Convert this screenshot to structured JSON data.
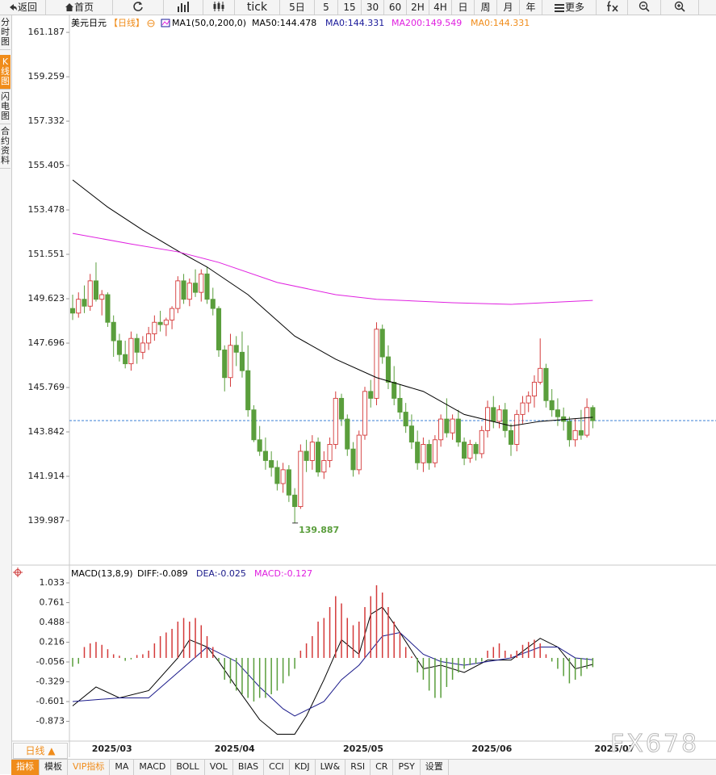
{
  "ui": {
    "toolbar": [
      "返回",
      "首页",
      "tick",
      "5日",
      "5",
      "15",
      "30",
      "60",
      "2H",
      "4H",
      "日",
      "周",
      "月",
      "年",
      "更多"
    ],
    "sidebar": [
      "分时图",
      "K线图",
      "闪电图",
      "合约资料"
    ],
    "period_button": "日线 ▲",
    "bottom_tabs": [
      "指标",
      "模板",
      "VIP指标",
      "MA",
      "MACD",
      "BOLL",
      "VOL",
      "BIAS",
      "CCI",
      "KDJ",
      "LW&",
      "RSI",
      "CR",
      "PSY",
      "设置"
    ],
    "watermark": "FX678"
  },
  "chart_data": [
    {
      "type": "candlestick",
      "title": "美元日元",
      "period": "【日线】",
      "indicator": "MA1(50,0,200,0)",
      "up_color": "#d43a3a",
      "down_color": "#5a9e3c",
      "categories": [
        null,
        null,
        null,
        "2025/03",
        null,
        null,
        null,
        null,
        null,
        null,
        null,
        null,
        null,
        null,
        null,
        null,
        null,
        null,
        null,
        null,
        null,
        null,
        null,
        null,
        "2025/04",
        null,
        null,
        null,
        null,
        null,
        null,
        null,
        null,
        null,
        null,
        null,
        null,
        null,
        null,
        null,
        null,
        null,
        null,
        null,
        null,
        null,
        "2025/05",
        null,
        null,
        null,
        null,
        null,
        null,
        null,
        null,
        null,
        null,
        null,
        null,
        null,
        null,
        null,
        null,
        null,
        null,
        null,
        null,
        null,
        "2025/06",
        null,
        null,
        null,
        null,
        null,
        null,
        null,
        null,
        null,
        null,
        null,
        null,
        null,
        null,
        null,
        null,
        null,
        null,
        null,
        null,
        "2025/07"
      ],
      "open": [
        149.2,
        149.0,
        149.6,
        149.3,
        150.4,
        149.6,
        149.8,
        148.6,
        147.8,
        147.2,
        146.8,
        147.9,
        147.3,
        147.7,
        148.1,
        148.6,
        148.5,
        148.7,
        149.2,
        150.4,
        149.6,
        150.3,
        149.9,
        150.7,
        149.6,
        149.2,
        147.4,
        146.2,
        147.6,
        147.3,
        146.5,
        144.8,
        143.5,
        143.0,
        142.6,
        142.3,
        141.6,
        142.2,
        141.1,
        140.6,
        143.0,
        142.6,
        143.4,
        142.1,
        142.6,
        143.3,
        145.3,
        144.4,
        143.1,
        142.2,
        143.7,
        145.6,
        145.3,
        148.3,
        147.1,
        146.0,
        145.3,
        144.7,
        144.1,
        143.4,
        142.5,
        143.3,
        142.5,
        143.5,
        144.4,
        143.8,
        144.4,
        143.4,
        142.7,
        143.3,
        142.9,
        143.9,
        144.9,
        144.3,
        144.8,
        143.9,
        143.3,
        144.6,
        145.1,
        145.4,
        146.0,
        146.6,
        145.2,
        144.8,
        144.5,
        144.3,
        143.5,
        143.9,
        143.7,
        144.9
      ],
      "high": [
        149.8,
        149.9,
        150.2,
        150.7,
        151.2,
        150.0,
        149.9,
        148.9,
        148.1,
        147.8,
        148.2,
        148.1,
        148.0,
        148.4,
        148.9,
        149.1,
        148.8,
        149.3,
        150.6,
        150.7,
        150.5,
        150.9,
        150.9,
        151.0,
        150.1,
        149.3,
        147.6,
        148.1,
        148.0,
        148.2,
        147.6,
        145.0,
        144.1,
        143.6,
        143.0,
        142.6,
        142.5,
        142.4,
        141.4,
        143.3,
        143.5,
        143.7,
        143.6,
        143.0,
        143.6,
        145.6,
        145.5,
        144.6,
        143.4,
        143.9,
        145.8,
        146.1,
        148.6,
        148.5,
        147.6,
        146.7,
        145.9,
        145.1,
        144.6,
        143.9,
        143.6,
        143.5,
        143.7,
        144.6,
        145.3,
        144.6,
        144.8,
        143.6,
        143.5,
        143.4,
        144.1,
        145.2,
        145.4,
        145.0,
        145.1,
        144.2,
        144.8,
        145.4,
        145.6,
        146.3,
        147.9,
        146.8,
        145.7,
        145.3,
        144.9,
        144.5,
        144.4,
        144.8,
        145.3,
        145.0
      ],
      "low": [
        148.7,
        148.8,
        149.0,
        149.1,
        149.5,
        148.9,
        148.4,
        147.1,
        146.9,
        146.6,
        146.5,
        146.8,
        147.0,
        147.4,
        147.8,
        148.2,
        148.0,
        148.3,
        149.0,
        149.4,
        149.3,
        149.7,
        149.5,
        149.4,
        148.9,
        147.1,
        145.6,
        145.8,
        146.7,
        146.2,
        144.5,
        143.4,
        142.8,
        142.2,
        141.9,
        141.3,
        141.2,
        140.8,
        139.887,
        140.5,
        142.1,
        142.2,
        141.9,
        141.8,
        142.3,
        143.1,
        144.1,
        142.8,
        141.9,
        142.0,
        143.5,
        144.9,
        145.0,
        146.8,
        145.7,
        145.0,
        144.4,
        143.8,
        143.1,
        142.2,
        142.1,
        142.2,
        142.3,
        143.2,
        143.6,
        143.5,
        143.2,
        142.4,
        142.5,
        142.6,
        142.7,
        143.6,
        144.0,
        144.0,
        143.6,
        142.8,
        143.0,
        144.2,
        144.7,
        144.9,
        145.9,
        144.9,
        144.5,
        144.1,
        143.9,
        143.2,
        143.2,
        143.5,
        143.6,
        144.0
      ],
      "close": [
        149.0,
        149.6,
        149.3,
        150.4,
        149.6,
        149.8,
        148.6,
        147.8,
        147.2,
        146.8,
        147.9,
        147.3,
        147.7,
        148.1,
        148.6,
        148.5,
        148.7,
        149.2,
        150.4,
        149.6,
        150.3,
        149.9,
        150.7,
        149.6,
        149.2,
        147.4,
        146.2,
        147.6,
        147.3,
        146.5,
        144.8,
        143.5,
        143.0,
        142.6,
        142.3,
        141.6,
        142.2,
        141.1,
        140.6,
        143.0,
        142.6,
        143.4,
        142.1,
        142.6,
        143.3,
        145.3,
        144.4,
        143.1,
        142.2,
        143.7,
        145.6,
        145.3,
        148.3,
        147.1,
        146.0,
        145.3,
        144.7,
        144.1,
        143.4,
        142.5,
        143.3,
        142.5,
        143.5,
        144.4,
        143.8,
        144.4,
        143.4,
        142.7,
        143.3,
        142.9,
        143.9,
        144.9,
        144.3,
        144.8,
        143.9,
        143.3,
        144.6,
        145.1,
        145.4,
        146.0,
        146.6,
        145.2,
        144.8,
        144.5,
        144.3,
        143.5,
        143.9,
        143.7,
        144.9,
        144.33
      ],
      "series": [
        {
          "name": "MA50:144.478",
          "color": "#000000",
          "x": [
            0,
            6,
            12,
            18,
            23,
            30,
            38,
            45,
            52,
            60,
            67,
            75,
            80,
            89
          ],
          "values": [
            154.78,
            153.6,
            152.6,
            151.7,
            151.0,
            149.8,
            148.0,
            147.0,
            146.2,
            145.6,
            144.6,
            144.1,
            144.3,
            144.478
          ]
        },
        {
          "name": "MA200:149.549",
          "color": "#e020e0",
          "x": [
            0,
            10,
            18,
            25,
            35,
            45,
            52,
            65,
            75,
            89
          ],
          "values": [
            152.46,
            152.0,
            151.66,
            151.2,
            150.33,
            149.8,
            149.6,
            149.45,
            149.38,
            149.549
          ]
        }
      ],
      "header_values": [
        {
          "label": "MA0:144.331",
          "color": "#1a1a9a"
        },
        {
          "label": "MA0:144.331",
          "color": "#f08c1a"
        }
      ],
      "reference_line": 144.331,
      "reference_color": "#3b7fd6",
      "ylim": [
        138.06,
        161.54
      ],
      "yticks": [
        161.187,
        159.259,
        157.332,
        155.405,
        153.478,
        151.551,
        149.623,
        147.696,
        145.769,
        143.842,
        141.914,
        139.987
      ]
    },
    {
      "type": "macd",
      "title": "MACD(13,8,9)",
      "up_color": "#d43a3a",
      "down_color": "#5a9e3c",
      "series": [
        {
          "name": "DIFF:-0.089",
          "color": "#000000",
          "x": [
            0,
            4,
            8,
            13,
            18,
            20,
            23,
            25,
            28,
            32,
            35,
            38,
            40,
            43,
            46,
            49,
            51,
            53,
            56,
            60,
            63,
            67,
            71,
            75,
            80,
            83,
            86,
            89
          ],
          "values": [
            -0.66,
            -0.4,
            -0.55,
            -0.45,
            0,
            0.25,
            0.15,
            -0.05,
            -0.4,
            -0.85,
            -1.05,
            -1.05,
            -0.8,
            -0.3,
            0.25,
            0.05,
            0.6,
            0.7,
            0.35,
            -0.15,
            -0.1,
            -0.2,
            -0.03,
            -0.03,
            0.27,
            0.15,
            -0.15,
            -0.089
          ]
        },
        {
          "name": "DEA:-0.025",
          "color": "#1a1a8a",
          "x": [
            0,
            8,
            13,
            18,
            23,
            28,
            32,
            36,
            38,
            43,
            46,
            49,
            53,
            56,
            60,
            63,
            67,
            71,
            75,
            80,
            83,
            86,
            89
          ],
          "values": [
            -0.6,
            -0.55,
            -0.55,
            -0.2,
            0.15,
            -0.05,
            -0.4,
            -0.7,
            -0.8,
            -0.6,
            -0.3,
            -0.1,
            0.3,
            0.35,
            0.05,
            -0.05,
            -0.1,
            -0.05,
            0,
            0.15,
            0.15,
            0,
            -0.025
          ]
        },
        {
          "name": "MACD:-0.127",
          "color": "#e020e0",
          "values": [
            -0.12,
            -0.08,
            0.15,
            0.2,
            0.22,
            0.18,
            0.12,
            0.05,
            0.03,
            -0.04,
            -0.02,
            0.04,
            0.05,
            0.1,
            0.2,
            0.3,
            0.35,
            0.4,
            0.5,
            0.55,
            0.5,
            0.55,
            0.45,
            0.3,
            0.15,
            -0.05,
            -0.3,
            -0.35,
            -0.45,
            -0.5,
            -0.55,
            -0.6,
            -0.55,
            -0.55,
            -0.5,
            -0.45,
            -0.35,
            -0.25,
            -0.15,
            0.1,
            0.2,
            0.3,
            0.5,
            0.55,
            0.7,
            0.85,
            0.75,
            0.55,
            0.45,
            0.5,
            0.7,
            0.85,
            1.0,
            0.9,
            0.7,
            0.5,
            0.35,
            0.15,
            0.02,
            -0.2,
            -0.3,
            -0.45,
            -0.55,
            -0.55,
            -0.4,
            -0.3,
            -0.2,
            -0.15,
            -0.1,
            -0.08,
            -0.05,
            0.1,
            0.15,
            0.2,
            0.1,
            0.05,
            0.1,
            0.18,
            0.22,
            0.25,
            0.2,
            0.05,
            -0.05,
            -0.15,
            -0.25,
            -0.35,
            -0.3,
            -0.25,
            -0.15,
            -0.127
          ]
        }
      ],
      "ylim": [
        -1.145,
        1.111
      ],
      "yticks": [
        1.033,
        0.761,
        0.488,
        0.216,
        -0.056,
        -0.329,
        -0.601,
        -0.873
      ]
    }
  ]
}
